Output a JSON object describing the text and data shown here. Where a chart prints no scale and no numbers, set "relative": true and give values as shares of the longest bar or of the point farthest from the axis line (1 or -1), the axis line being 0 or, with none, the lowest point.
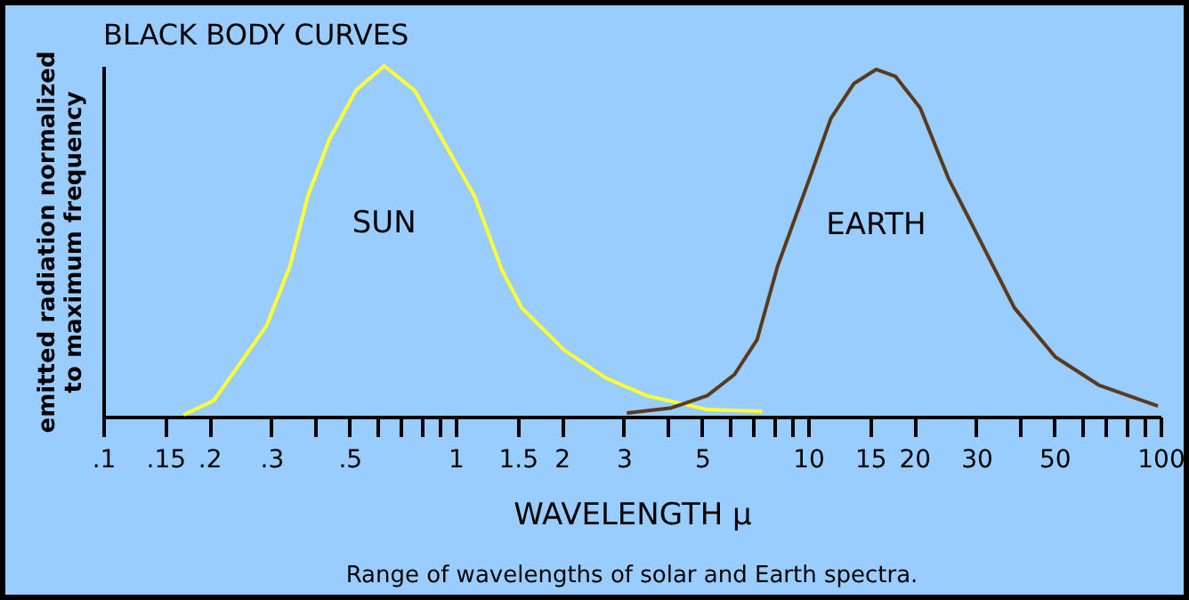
{
  "chart_data": {
    "type": "line",
    "title": "BLACK BODY CURVES",
    "xlabel": "WAVELENGTH  μ",
    "ylabel": "emitted radiation normalized\nto maximum frequency",
    "annotations": [
      "Range of wavelengths of solar and Earth spectra."
    ],
    "relative": true,
    "log": "x",
    "xlim": [
      0.1,
      100
    ],
    "xticks": [
      {
        "value": 0.1,
        "label": ".1"
      },
      {
        "value": 0.15,
        "label": ".15"
      },
      {
        "value": 0.2,
        "label": ".2"
      },
      {
        "value": 0.3,
        "label": ".3"
      },
      {
        "value": 0.4,
        "label": null
      },
      {
        "value": 0.5,
        "label": ".5"
      },
      {
        "value": 0.6,
        "label": null
      },
      {
        "value": 0.7,
        "label": null
      },
      {
        "value": 0.8,
        "label": null
      },
      {
        "value": 0.9,
        "label": null
      },
      1,
      1.5,
      2,
      3,
      {
        "value": 4,
        "label": null
      },
      5,
      {
        "value": 6,
        "label": null
      },
      {
        "value": 7,
        "label": null
      },
      {
        "value": 8,
        "label": null
      },
      {
        "value": 9,
        "label": null
      },
      10,
      15,
      20,
      30,
      {
        "value": 40,
        "label": null
      },
      50,
      {
        "value": 60,
        "label": null
      },
      {
        "value": 70,
        "label": null
      },
      {
        "value": 80,
        "label": null
      },
      {
        "value": 90,
        "label": null
      },
      100
    ],
    "grid": false,
    "legend": false,
    "marker": "none",
    "line_style": "solid",
    "series": [
      {
        "name": "SUN",
        "color": "#ffff33",
        "x": [
          0.169,
          0.206,
          0.291,
          0.339,
          0.381,
          0.438,
          0.521,
          0.627,
          0.765,
          0.966,
          1.13,
          1.35,
          1.54,
          2.03,
          2.67,
          3.48,
          5.18,
          7.41
        ],
        "values": [
          0.005,
          0.046,
          0.26,
          0.43,
          0.63,
          0.79,
          0.93,
          1.0,
          0.93,
          0.75,
          0.63,
          0.42,
          0.31,
          0.19,
          0.11,
          0.06,
          0.02,
          0.015
        ]
      },
      {
        "name": "EARTH",
        "color": "#5a3a1a",
        "x": [
          3.06,
          4.09,
          5.18,
          6.18,
          7.17,
          8.2,
          10.1,
          11.6,
          13.5,
          15.6,
          17.7,
          20.8,
          25.0,
          30.5,
          38.5,
          50.3,
          66.8,
          98.3
        ],
        "values": [
          0.01,
          0.025,
          0.06,
          0.12,
          0.22,
          0.43,
          0.68,
          0.85,
          0.95,
          0.99,
          0.97,
          0.88,
          0.68,
          0.51,
          0.31,
          0.17,
          0.09,
          0.03
        ]
      }
    ]
  }
}
